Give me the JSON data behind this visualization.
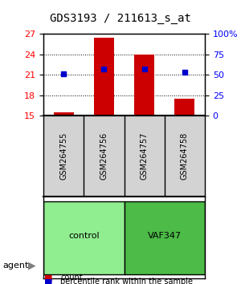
{
  "title": "GDS3193 / 211613_s_at",
  "samples": [
    "GSM264755",
    "GSM264756",
    "GSM264757",
    "GSM264758"
  ],
  "groups": [
    "control",
    "control",
    "VAF347",
    "VAF347"
  ],
  "group_labels": [
    "control",
    "VAF347"
  ],
  "group_colors": [
    "#90EE90",
    "#4CBB47"
  ],
  "count_values": [
    15.5,
    26.5,
    24.0,
    17.5
  ],
  "percentile_values": [
    21.2,
    21.8,
    21.8,
    21.4
  ],
  "ylim_left": [
    15,
    27
  ],
  "ylim_right": [
    0,
    100
  ],
  "yticks_left": [
    15,
    18,
    21,
    24,
    27
  ],
  "yticks_right": [
    0,
    25,
    50,
    75,
    100
  ],
  "ytick_labels_right": [
    "0",
    "25",
    "50",
    "75",
    "100%"
  ],
  "bar_color": "#CC0000",
  "dot_color": "#0000CC",
  "bar_width": 0.5,
  "grid_yticks": [
    18,
    21,
    24
  ],
  "agent_label": "agent",
  "legend_count": "count",
  "legend_percentile": "percentile rank within the sample"
}
